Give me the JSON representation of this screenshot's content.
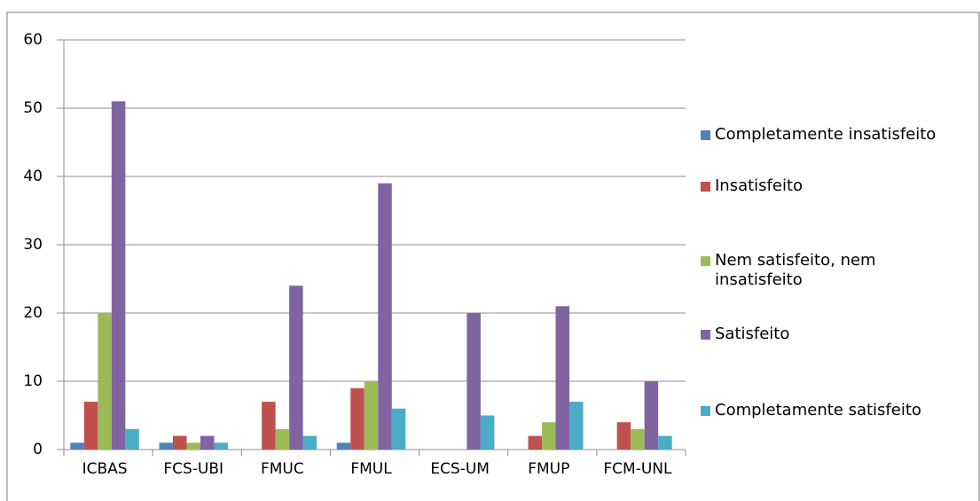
{
  "chart_data": {
    "type": "bar",
    "categories": [
      "ICBAS",
      "FCS-UBI",
      "FMUC",
      "FMUL",
      "ECS-UM",
      "FMUP",
      "FCM-UNL"
    ],
    "series": [
      {
        "name": "Completamente insatisfeito",
        "color": "#4f81bd",
        "values": [
          1,
          1,
          0,
          1,
          0,
          0,
          0
        ]
      },
      {
        "name": "Insatisfeito",
        "color": "#c0504d",
        "values": [
          7,
          2,
          7,
          9,
          0,
          2,
          4
        ]
      },
      {
        "name": "Nem satisfeito, nem insatisfeito",
        "color": "#9bbb59",
        "values": [
          20,
          1,
          3,
          10,
          0,
          4,
          3
        ]
      },
      {
        "name": "Satisfeito",
        "color": "#8064a2",
        "values": [
          51,
          2,
          24,
          39,
          20,
          21,
          10
        ]
      },
      {
        "name": "Completamente satisfeito",
        "color": "#4bacc6",
        "values": [
          3,
          1,
          2,
          6,
          5,
          7,
          2
        ]
      }
    ],
    "ylim": [
      0,
      60
    ],
    "yticks": [
      0,
      10,
      20,
      30,
      40,
      50,
      60
    ],
    "grid": true,
    "legend": "right"
  }
}
